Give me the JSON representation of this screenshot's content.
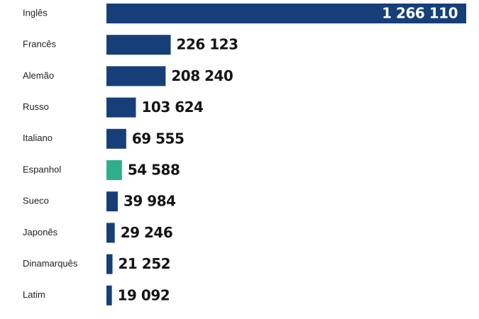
{
  "chart_data": {
    "type": "bar",
    "orientation": "horizontal",
    "categories": [
      "Inglês",
      "Francês",
      "Alemão",
      "Russo",
      "Italiano",
      "Espanhol",
      "Sueco",
      "Japonês",
      "Dinamarquês",
      "Latim"
    ],
    "values": [
      1266110,
      226123,
      208240,
      103624,
      69555,
      54588,
      39984,
      29246,
      21252,
      19092
    ],
    "value_labels": [
      "1 266 110",
      "226 123",
      "208 240",
      "103 624",
      "69 555",
      "54 588",
      "39 984",
      "29 246",
      "21 252",
      "19 092"
    ],
    "colors": [
      "#163f7a",
      "#163f7a",
      "#163f7a",
      "#163f7a",
      "#163f7a",
      "#2fae8c",
      "#163f7a",
      "#163f7a",
      "#163f7a",
      "#163f7a"
    ]
  }
}
